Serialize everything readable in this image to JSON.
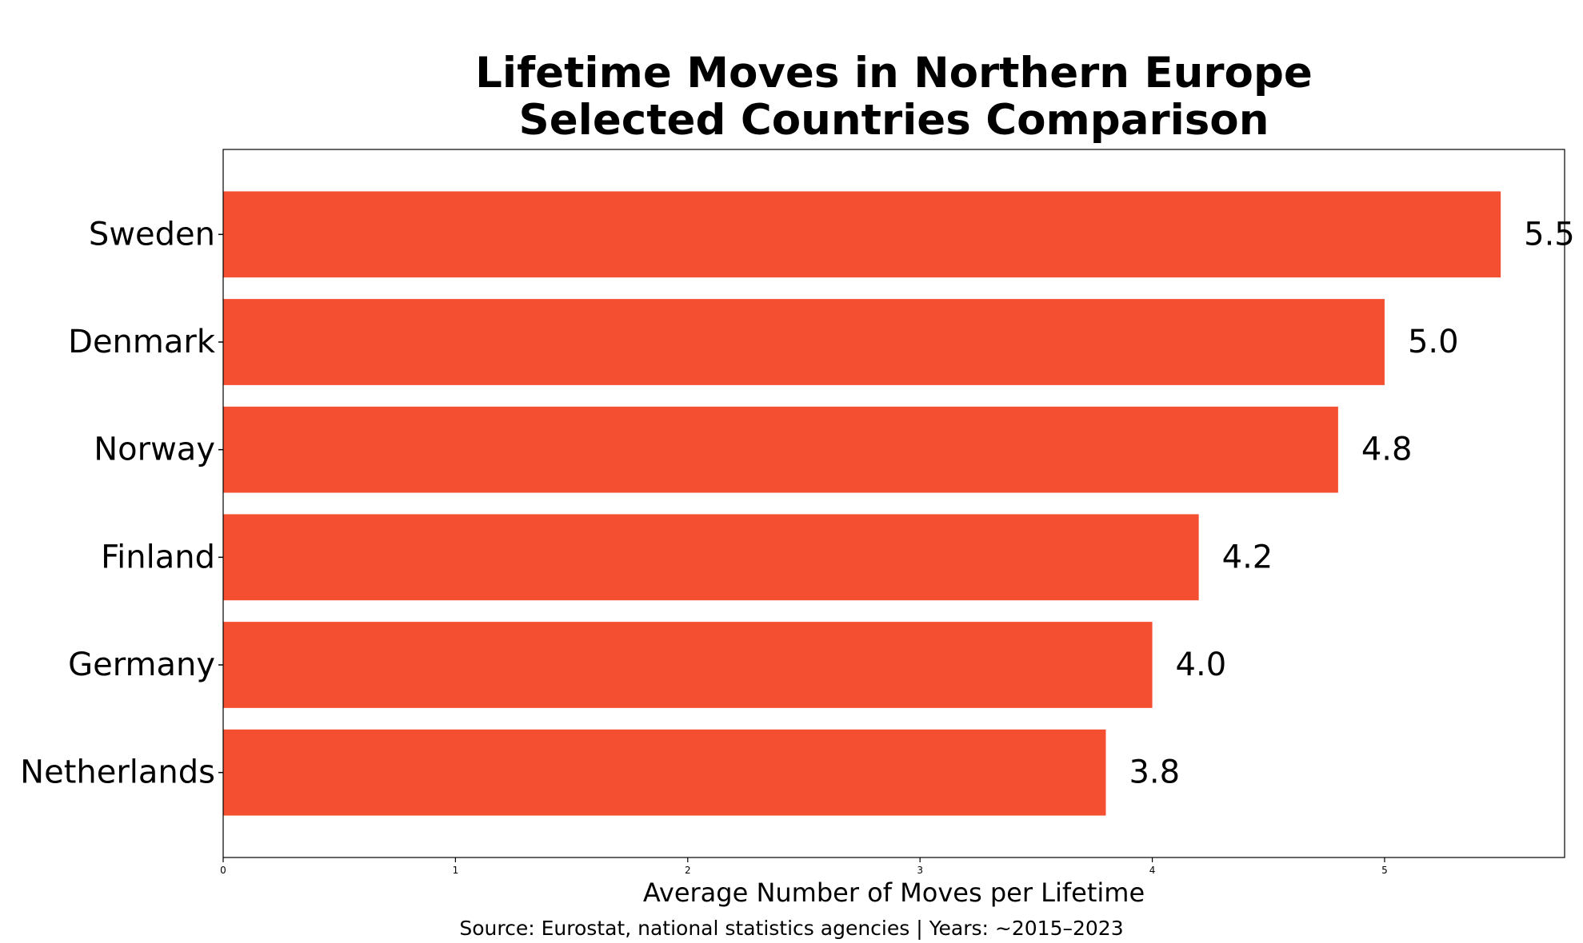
{
  "chart_data": {
    "type": "bar",
    "orientation": "horizontal",
    "title_lines": [
      "Lifetime Moves in Northern Europe",
      "Selected Countries Comparison"
    ],
    "xlabel": "Average Number of Moves per Lifetime",
    "ylabel": "",
    "source": "Source: Eurostat, national statistics agencies | Years: ~2015–2023",
    "categories": [
      "Sweden",
      "Denmark",
      "Norway",
      "Finland",
      "Germany",
      "Netherlands"
    ],
    "values": [
      5.5,
      5.0,
      4.8,
      4.2,
      4.0,
      3.8
    ],
    "data_labels": [
      "5.5",
      "5.0",
      "4.8",
      "4.2",
      "4.0",
      "3.8"
    ],
    "xlim": [
      0,
      5.775
    ],
    "xticks": [
      0,
      1,
      2,
      3,
      4,
      5
    ],
    "xtick_labels": [
      "0",
      "1",
      "2",
      "3",
      "4",
      "5"
    ],
    "grid": false,
    "legend": "none",
    "bar_color": "#f44f30"
  }
}
